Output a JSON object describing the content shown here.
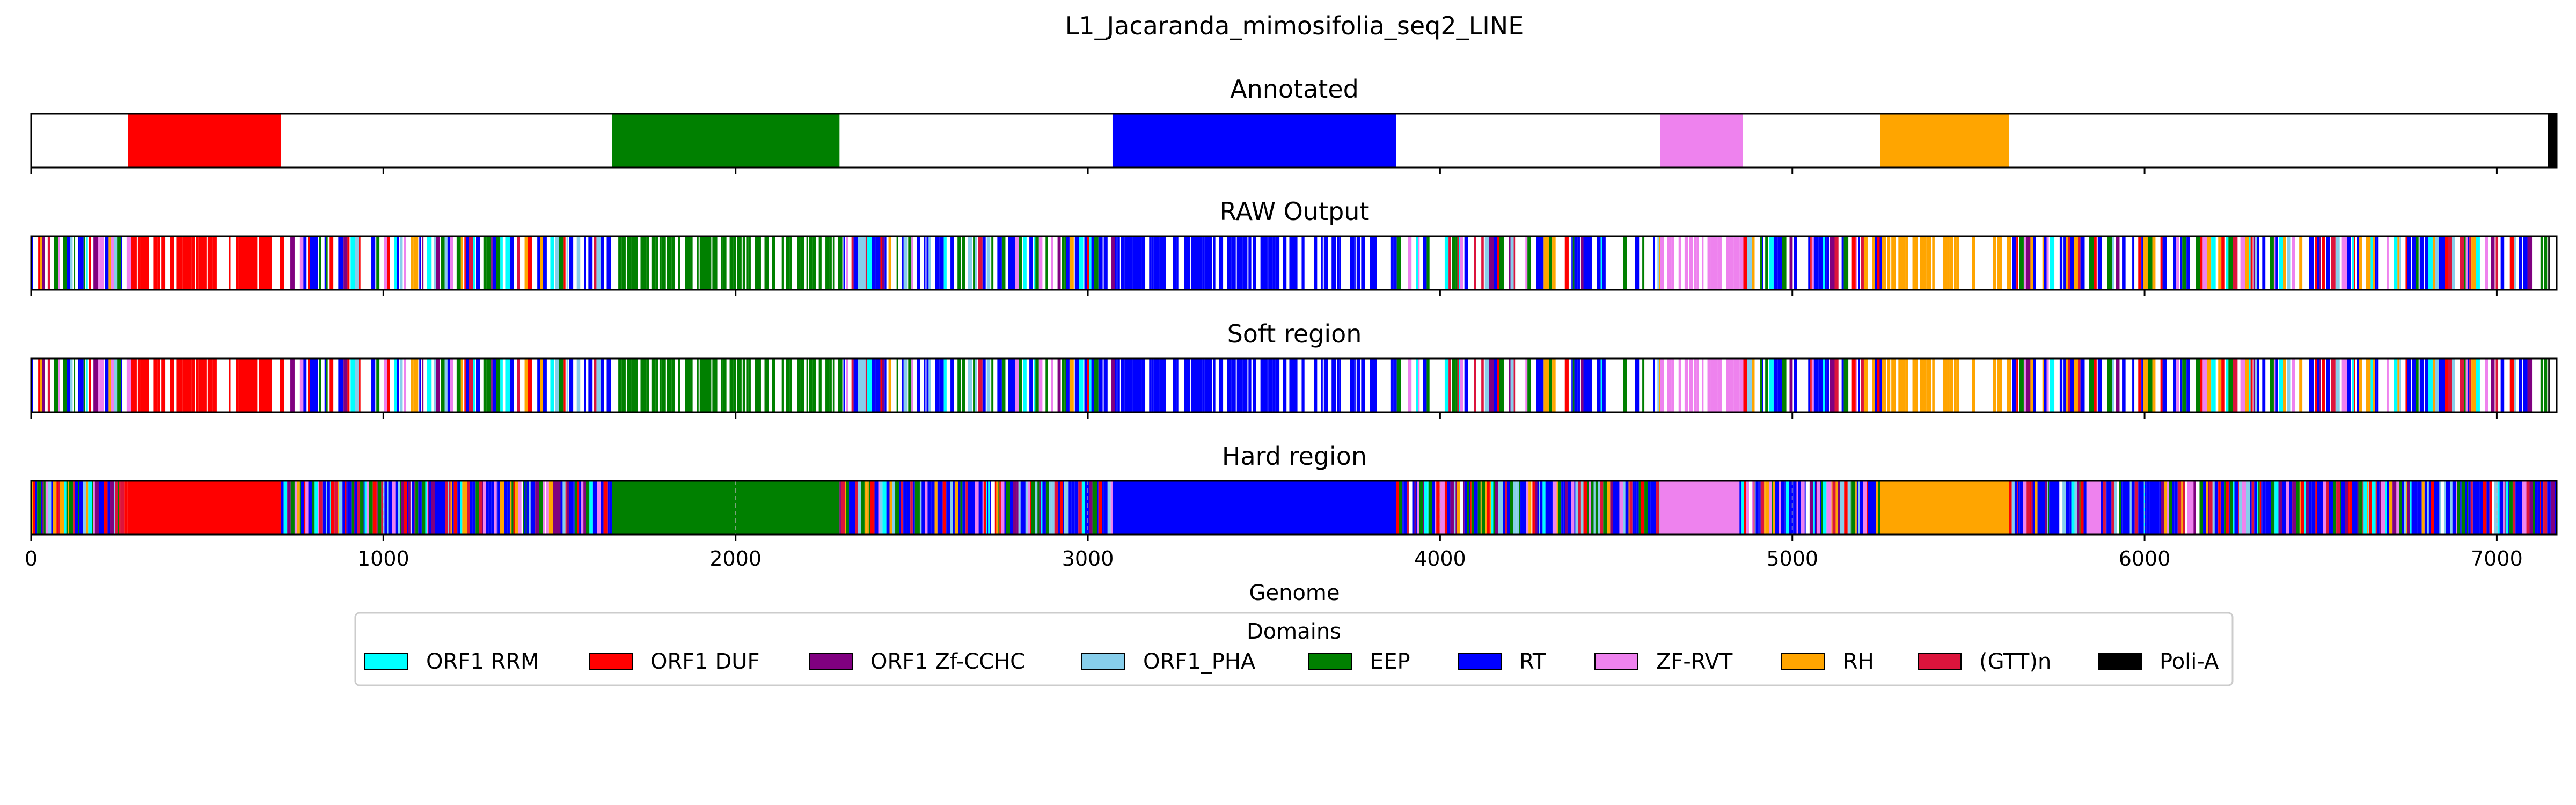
{
  "chart_data": {
    "type": "bar",
    "title": "L1_Jacaranda_mimosifolia_seq2_LINE",
    "xlabel": "Genome",
    "xlim": [
      0,
      7170
    ],
    "xticks": [
      0,
      1000,
      2000,
      3000,
      4000,
      5000,
      6000,
      7000
    ],
    "legend": {
      "title": "Domains",
      "placement": "bottom-center",
      "entries": [
        {
          "label": "ORF1 RRM",
          "color": "#00ffff"
        },
        {
          "label": "ORF1 DUF",
          "color": "#ff0000"
        },
        {
          "label": "ORF1 Zf-CCHC",
          "color": "#800080"
        },
        {
          "label": "ORF1_PHA",
          "color": "#87ceeb"
        },
        {
          "label": "EEP",
          "color": "#008000"
        },
        {
          "label": "RT",
          "color": "#0000ff"
        },
        {
          "label": "ZF-RVT",
          "color": "#ee82ee"
        },
        {
          "label": "RH",
          "color": "#ffa500"
        },
        {
          "label": "(GTT)n",
          "color": "#dc143c"
        },
        {
          "label": "Poli-A",
          "color": "#000000"
        }
      ]
    },
    "panels": [
      {
        "title": "Annotated",
        "mode": "segments",
        "segments": [
          {
            "domain": "ORF1 DUF",
            "start": 275,
            "end": 710
          },
          {
            "domain": "EEP",
            "start": 1650,
            "end": 2295
          },
          {
            "domain": "RT",
            "start": 3070,
            "end": 3875
          },
          {
            "domain": "ZF-RVT",
            "start": 4625,
            "end": 4860
          },
          {
            "domain": "RH",
            "start": 5250,
            "end": 5615
          },
          {
            "domain": "Poli-A",
            "start": 7145,
            "end": 7170
          }
        ]
      },
      {
        "title": "RAW Output",
        "mode": "noisy",
        "fill_rate": 0.72,
        "seed": 11,
        "regions": [
          {
            "domain": "ORF1 DUF",
            "start": 275,
            "end": 710
          },
          {
            "domain": "EEP",
            "start": 1650,
            "end": 2295
          },
          {
            "domain": "RT",
            "start": 3070,
            "end": 3875
          },
          {
            "domain": "ZF-RVT",
            "start": 4625,
            "end": 4860
          },
          {
            "domain": "RH",
            "start": 5250,
            "end": 5615
          },
          {
            "domain": "Poli-A",
            "start": 7145,
            "end": 7170
          }
        ]
      },
      {
        "title": "Soft region",
        "mode": "noisy",
        "fill_rate": 0.72,
        "seed": 11,
        "regions": [
          {
            "domain": "ORF1 DUF",
            "start": 275,
            "end": 710
          },
          {
            "domain": "EEP",
            "start": 1650,
            "end": 2295
          },
          {
            "domain": "RT",
            "start": 3070,
            "end": 3875
          },
          {
            "domain": "ZF-RVT",
            "start": 4625,
            "end": 4860
          },
          {
            "domain": "RH",
            "start": 5250,
            "end": 5615
          },
          {
            "domain": "Poli-A",
            "start": 7145,
            "end": 7170
          }
        ]
      },
      {
        "title": "Hard region",
        "mode": "hard",
        "fill_rate": 0.97,
        "seed": 23,
        "solid_regions": [
          {
            "domain": "ORF1 DUF",
            "start": 275,
            "end": 710
          },
          {
            "domain": "EEP",
            "start": 1650,
            "end": 2295
          },
          {
            "domain": "RT",
            "start": 3070,
            "end": 3875
          },
          {
            "domain": "ZF-RVT",
            "start": 4625,
            "end": 4850
          },
          {
            "domain": "RH",
            "start": 5250,
            "end": 5615
          },
          {
            "domain": "ZF-RVT",
            "start": 5835,
            "end": 5875
          }
        ]
      }
    ]
  }
}
